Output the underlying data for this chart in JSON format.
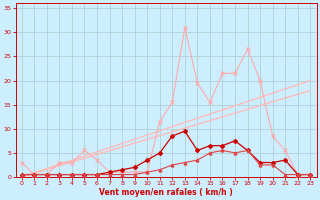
{
  "x": [
    0,
    1,
    2,
    3,
    4,
    5,
    6,
    7,
    8,
    9,
    10,
    11,
    12,
    13,
    14,
    15,
    16,
    17,
    18,
    19,
    20,
    21,
    22,
    23
  ],
  "line1": [
    3.0,
    0.5,
    0.5,
    3.0,
    3.0,
    5.5,
    3.5,
    1.0,
    1.0,
    1.0,
    1.0,
    11.5,
    15.5,
    31.0,
    19.5,
    15.5,
    21.5,
    21.5,
    26.5,
    20.0,
    8.5,
    5.5,
    0.5,
    0.5
  ],
  "line2": [
    0.5,
    0.5,
    0.5,
    0.5,
    0.5,
    0.5,
    0.5,
    1.0,
    1.5,
    2.0,
    3.5,
    5.0,
    8.5,
    9.5,
    5.5,
    6.5,
    6.5,
    7.5,
    5.5,
    3.0,
    3.0,
    3.5,
    0.5,
    0.5
  ],
  "line3": [
    0.5,
    0.5,
    0.5,
    0.5,
    0.5,
    0.5,
    0.5,
    0.5,
    0.5,
    0.5,
    1.0,
    1.5,
    2.5,
    3.0,
    3.5,
    5.0,
    5.5,
    5.0,
    5.5,
    2.5,
    2.5,
    0.5,
    0.5,
    0.5
  ],
  "linear1": [
    0.0,
    0.87,
    1.74,
    2.61,
    3.48,
    4.35,
    5.22,
    6.09,
    6.96,
    7.83,
    8.7,
    9.57,
    10.44,
    11.31,
    12.18,
    13.05,
    13.92,
    14.79,
    15.66,
    16.53,
    17.4,
    18.27,
    19.14,
    20.0
  ],
  "linear2": [
    0.0,
    0.78,
    1.56,
    2.34,
    3.12,
    3.9,
    4.68,
    5.46,
    6.24,
    7.02,
    7.8,
    8.58,
    9.36,
    10.14,
    10.92,
    11.7,
    12.48,
    13.26,
    14.04,
    14.82,
    15.6,
    16.38,
    17.16,
    17.9
  ],
  "bg_color": "#cceeff",
  "grid_major_color": "#aacccc",
  "line1_color": "#ffaaaa",
  "line2_color": "#cc0000",
  "line3_color": "#dd4444",
  "linear1_color": "#ffbbbb",
  "linear2_color": "#ffbbbb",
  "tick_color": "#cc0000",
  "spine_color": "#cc0000",
  "xlabel": "Vent moyen/en rafales ( km/h )",
  "xlabel_color": "#cc0000",
  "ylim": [
    0,
    36
  ],
  "xlim": [
    -0.5,
    23.5
  ],
  "yticks": [
    0,
    5,
    10,
    15,
    20,
    25,
    30,
    35
  ],
  "xticks": [
    0,
    1,
    2,
    3,
    4,
    5,
    6,
    7,
    8,
    9,
    10,
    11,
    12,
    13,
    14,
    15,
    16,
    17,
    18,
    19,
    20,
    21,
    22,
    23
  ]
}
